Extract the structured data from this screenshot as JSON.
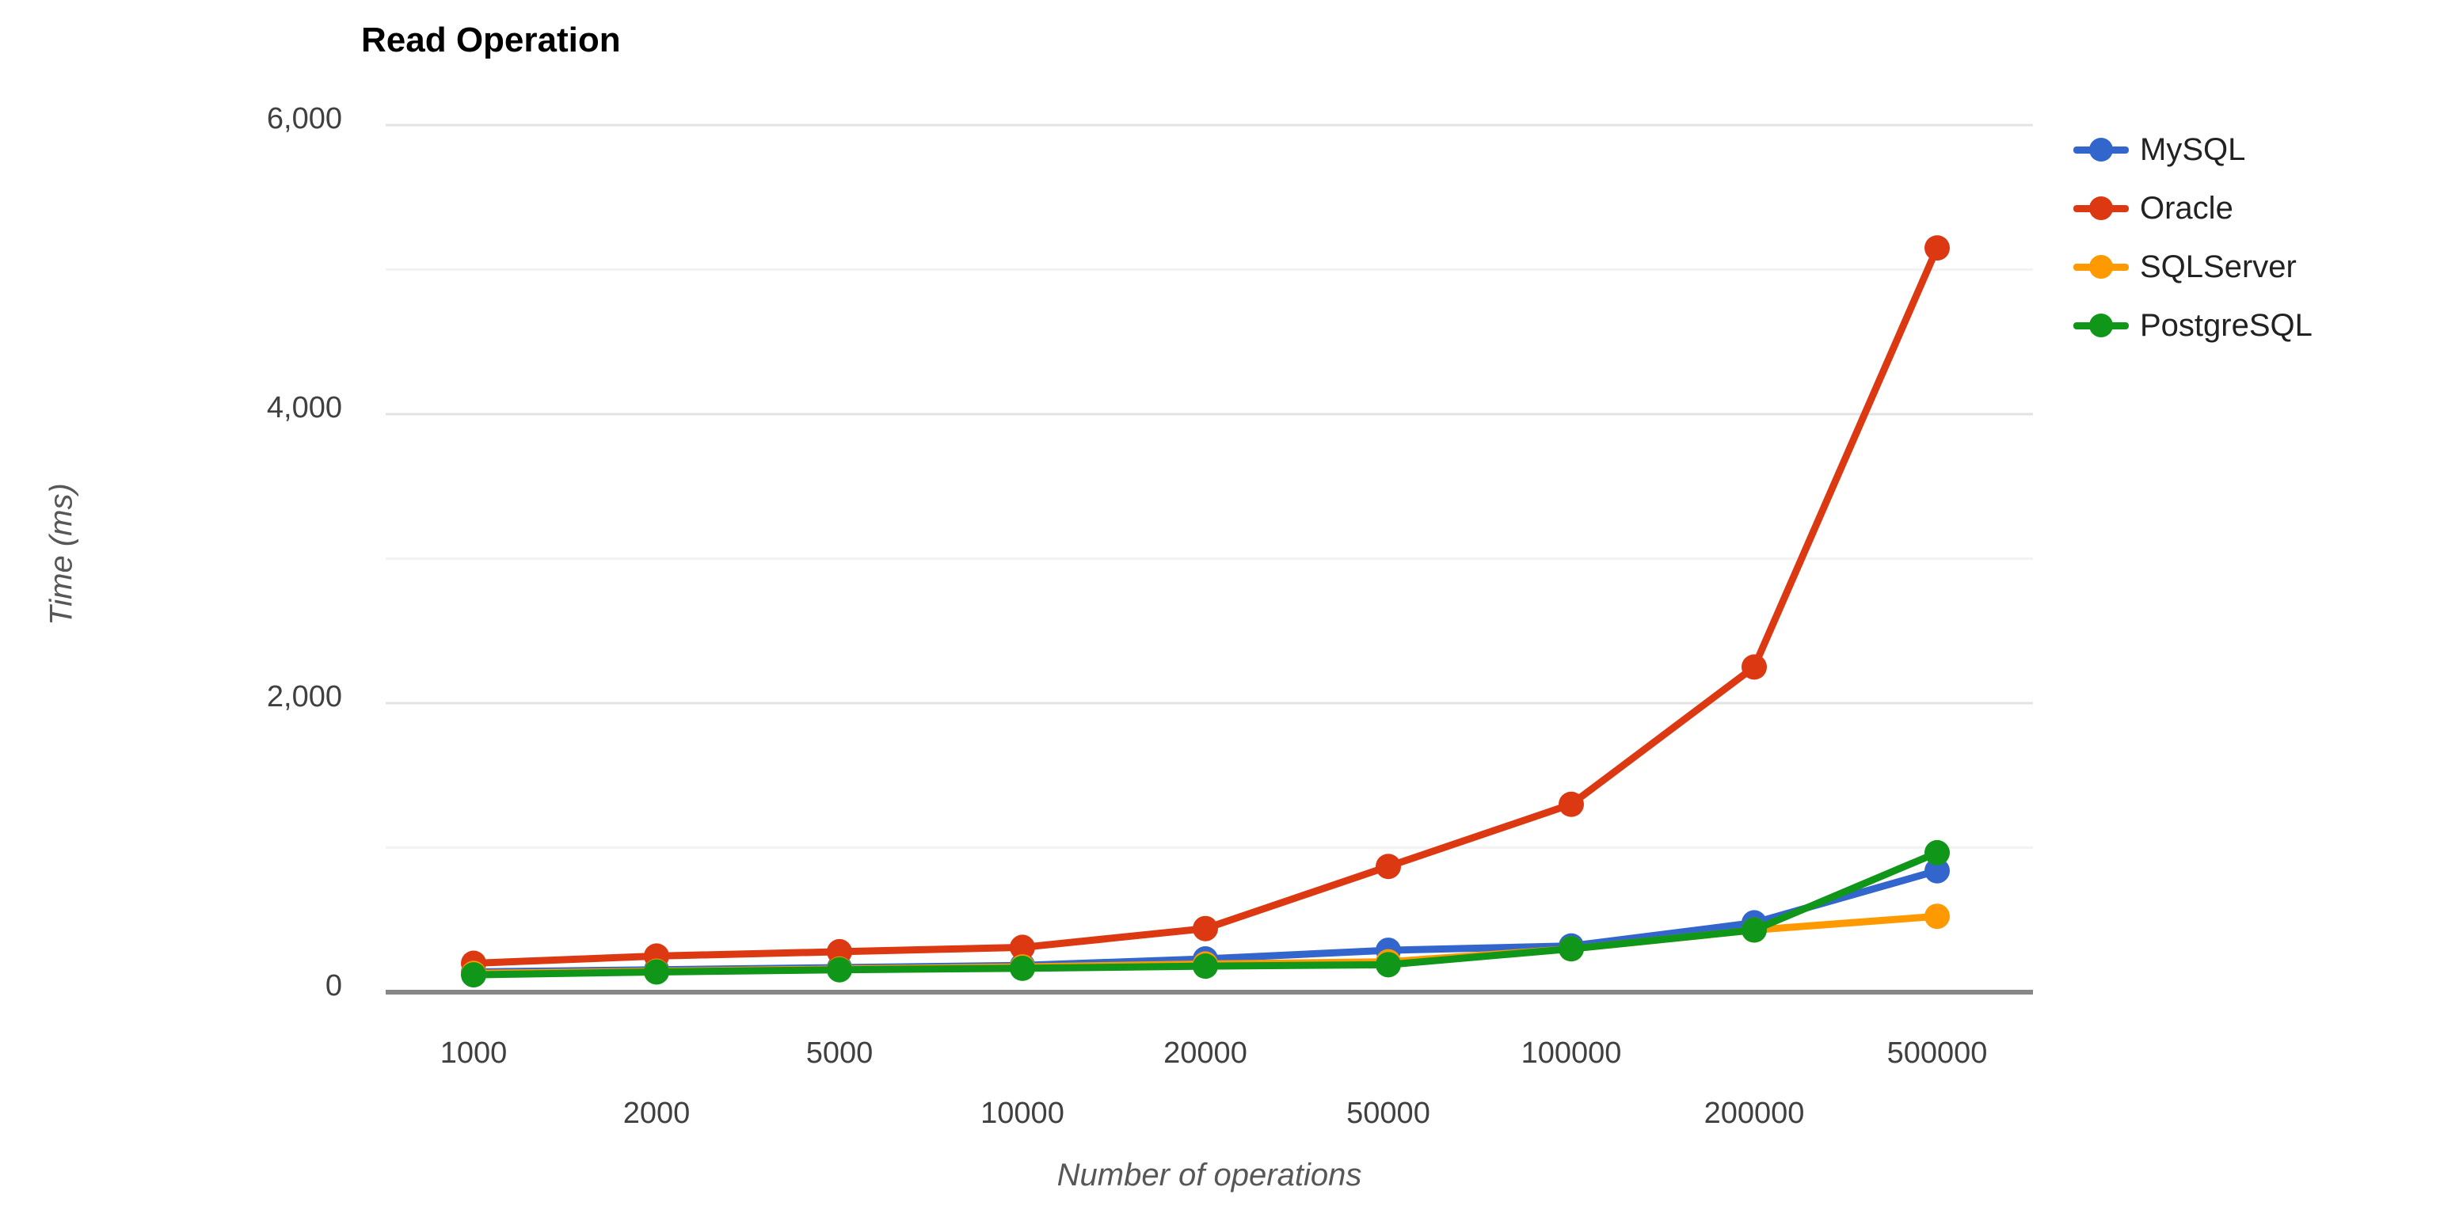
{
  "chart": {
    "title": "Read Operation",
    "x_axis_title": "Number of operations",
    "y_axis_title": "Time (ms)",
    "y_tick_labels": [
      "0",
      "2,000",
      "4,000",
      "6,000"
    ]
  },
  "chart_data": {
    "type": "line",
    "title": "Read Operation",
    "xlabel": "Number of operations",
    "ylabel": "Time (ms)",
    "categories": [
      "1000",
      "2000",
      "5000",
      "10000",
      "20000",
      "50000",
      "100000",
      "200000",
      "500000"
    ],
    "series": [
      {
        "name": "MySQL",
        "color": "#3366CC",
        "values": [
          140,
          155,
          170,
          185,
          230,
          290,
          320,
          480,
          840
        ]
      },
      {
        "name": "Oracle",
        "color": "#DC3912",
        "values": [
          200,
          250,
          280,
          310,
          440,
          870,
          1300,
          2250,
          5150
        ]
      },
      {
        "name": "SQLServer",
        "color": "#FF9900",
        "values": [
          130,
          145,
          160,
          175,
          195,
          210,
          300,
          430,
          525
        ]
      },
      {
        "name": "PostgreSQL",
        "color": "#109618",
        "values": [
          120,
          140,
          155,
          165,
          180,
          190,
          300,
          430,
          965
        ]
      }
    ],
    "ylim": [
      0,
      6000
    ],
    "y_major_ticks": [
      0,
      2000,
      4000,
      6000
    ],
    "y_minor_gridlines": [
      1000,
      3000,
      5000
    ],
    "grid": true,
    "legend_position": "right",
    "marker": "circle"
  }
}
